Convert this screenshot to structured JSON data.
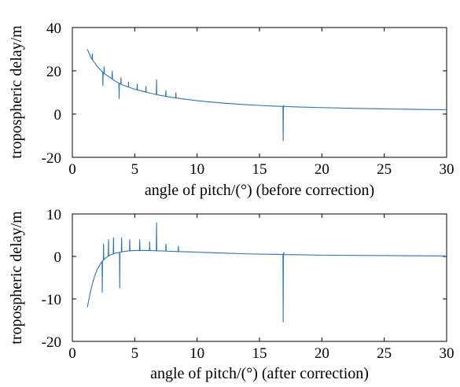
{
  "chart_data": [
    {
      "type": "line",
      "xlabel": "angle of pitch/(°)  (before correction)",
      "ylabel": "tropospheric delay/m",
      "xlim": [
        0,
        30
      ],
      "ylim": [
        -20,
        40
      ],
      "xticks": [
        0,
        5,
        10,
        15,
        20,
        25,
        30
      ],
      "yticks": [
        -20,
        0,
        20,
        40
      ],
      "grid": false,
      "line_color": "#2a73b8",
      "series": [
        {
          "x": [
            1.2,
            1.5,
            2.0,
            2.5,
            3.0,
            3.5,
            4.0,
            4.5,
            5.0,
            6.0,
            7.0,
            8.0,
            9.0,
            10.0,
            11.0,
            12.0,
            13.0,
            14.0,
            15.0,
            16.0,
            17.0,
            18.0,
            20.0,
            22.0,
            25.0,
            28.0,
            30.0
          ],
          "values": [
            30,
            26,
            22,
            19,
            17,
            15,
            13.5,
            12.5,
            11.5,
            10,
            8.7,
            7.7,
            6.9,
            6.2,
            5.6,
            5.1,
            4.7,
            4.3,
            4.0,
            3.7,
            3.5,
            3.3,
            3.0,
            2.7,
            2.4,
            2.1,
            2.0
          ],
          "spikes": [
            {
              "x": 1.6,
              "y": 28
            },
            {
              "x": 2.45,
              "y": 13
            },
            {
              "x": 2.55,
              "y": 22
            },
            {
              "x": 3.2,
              "y": 20
            },
            {
              "x": 3.75,
              "y": 7
            },
            {
              "x": 3.9,
              "y": 17
            },
            {
              "x": 4.5,
              "y": 15
            },
            {
              "x": 5.2,
              "y": 14
            },
            {
              "x": 5.9,
              "y": 13
            },
            {
              "x": 6.75,
              "y": 16
            },
            {
              "x": 7.5,
              "y": 11
            },
            {
              "x": 8.3,
              "y": 10
            },
            {
              "x": 16.9,
              "y": -12.5
            },
            {
              "x": 16.95,
              "y": 4
            }
          ]
        }
      ]
    },
    {
      "type": "line",
      "xlabel": "angle of pitch/(°)  (after correction)",
      "ylabel": "tropospheric delay/m",
      "xlim": [
        0,
        30
      ],
      "ylim": [
        -20,
        10
      ],
      "xticks": [
        0,
        5,
        10,
        15,
        20,
        25,
        30
      ],
      "yticks": [
        -20,
        -10,
        0,
        10
      ],
      "grid": false,
      "line_color": "#2a73b8",
      "series": [
        {
          "x": [
            1.2,
            1.4,
            1.6,
            1.8,
            2.0,
            2.3,
            2.6,
            3.0,
            3.5,
            4.0,
            4.5,
            5.0,
            6.0,
            7.0,
            8.0,
            9.0,
            10.0,
            12.0,
            14.0,
            16.0,
            18.0,
            20.0,
            25.0,
            30.0
          ],
          "values": [
            -12,
            -9,
            -6.5,
            -4.5,
            -3,
            -1.5,
            -0.5,
            0.3,
            0.8,
            1.1,
            1.3,
            1.4,
            1.4,
            1.3,
            1.2,
            1.1,
            1.0,
            0.8,
            0.6,
            0.5,
            0.4,
            0.3,
            0.2,
            0.1
          ],
          "spikes": [
            {
              "x": 2.4,
              "y": -8.5
            },
            {
              "x": 2.5,
              "y": 3
            },
            {
              "x": 2.9,
              "y": 4
            },
            {
              "x": 3.3,
              "y": 4.5
            },
            {
              "x": 3.8,
              "y": -7.5
            },
            {
              "x": 3.95,
              "y": 4.5
            },
            {
              "x": 4.6,
              "y": 4
            },
            {
              "x": 5.4,
              "y": 4
            },
            {
              "x": 6.2,
              "y": 3.5
            },
            {
              "x": 6.75,
              "y": 8
            },
            {
              "x": 7.5,
              "y": 3
            },
            {
              "x": 8.5,
              "y": 2.5
            },
            {
              "x": 16.9,
              "y": -15.5
            },
            {
              "x": 16.95,
              "y": 1
            }
          ]
        }
      ]
    }
  ]
}
